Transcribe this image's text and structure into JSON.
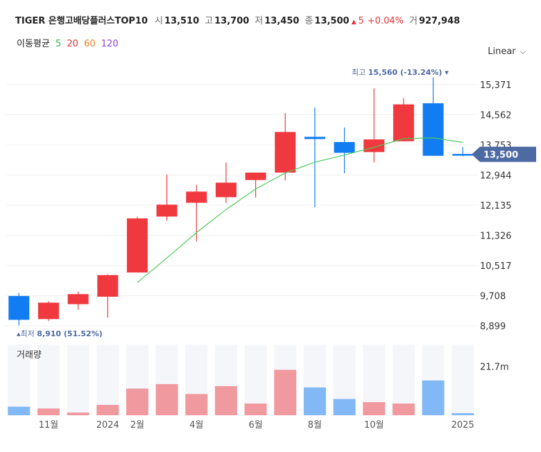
{
  "header": {
    "name": "TIGER 은행고배당플러스TOP10",
    "open_label": "시",
    "open": "13,510",
    "high_label": "고",
    "high": "13,700",
    "low_label": "저",
    "low": "13,450",
    "close_label": "종",
    "close": "13,500",
    "change": "5",
    "change_pct": "+0.04%",
    "volume_label": "거",
    "volume": "927,948"
  },
  "moving_average": {
    "label": "이동평균",
    "periods": [
      {
        "value": "5",
        "color": "#2db84d"
      },
      {
        "value": "20",
        "color": "#e5323a"
      },
      {
        "value": "60",
        "color": "#f07c22"
      },
      {
        "value": "120",
        "color": "#8a3ed6"
      }
    ]
  },
  "scale_selector": {
    "label": "Linear"
  },
  "colors": {
    "up": "#f0393f",
    "down": "#127df2",
    "up_volume": "#f09aa0",
    "down_volume": "#82b8f5",
    "ma": "#4cc95a",
    "badge": "#4e6aa3"
  },
  "chart_data": {
    "type": "candlestick",
    "y_ticks": [
      "15,371",
      "14,562",
      "13,753",
      "12,944",
      "12,135",
      "11,326",
      "10,517",
      "9,708",
      "8,899"
    ],
    "y_tick_values": [
      15371,
      14562,
      13753,
      12944,
      12135,
      11326,
      10517,
      9708,
      8899
    ],
    "ylim": [
      8660,
      15640
    ],
    "x_tick_labels": [
      {
        "label": "11월",
        "index": 1
      },
      {
        "label": "2024",
        "index": 3
      },
      {
        "label": "2월",
        "index": 4
      },
      {
        "label": "4월",
        "index": 6
      },
      {
        "label": "6월",
        "index": 8
      },
      {
        "label": "8월",
        "index": 10
      },
      {
        "label": "10월",
        "index": 12
      },
      {
        "label": "2025",
        "index": 15
      }
    ],
    "candles": [
      {
        "open": 9700,
        "high": 9780,
        "low": 8910,
        "close": 9060
      },
      {
        "open": 9080,
        "high": 9560,
        "low": 9030,
        "close": 9520
      },
      {
        "open": 9480,
        "high": 9820,
        "low": 9330,
        "close": 9750
      },
      {
        "open": 9680,
        "high": 10280,
        "low": 9120,
        "close": 10260
      },
      {
        "open": 10330,
        "high": 11830,
        "low": 10330,
        "close": 11780
      },
      {
        "open": 11830,
        "high": 12960,
        "low": 11720,
        "close": 12150
      },
      {
        "open": 12200,
        "high": 12680,
        "low": 11160,
        "close": 12500
      },
      {
        "open": 12350,
        "high": 13280,
        "low": 12200,
        "close": 12740
      },
      {
        "open": 12810,
        "high": 13010,
        "low": 12340,
        "close": 13010
      },
      {
        "open": 13010,
        "high": 14610,
        "low": 12800,
        "close": 14100
      },
      {
        "open": 13970,
        "high": 14750,
        "low": 12080,
        "close": 13910
      },
      {
        "open": 13830,
        "high": 14220,
        "low": 12990,
        "close": 13540
      },
      {
        "open": 13560,
        "high": 15270,
        "low": 13280,
        "close": 13900
      },
      {
        "open": 13850,
        "high": 15010,
        "low": 13850,
        "close": 14840
      },
      {
        "open": 14870,
        "high": 15560,
        "low": 13460,
        "close": 13460
      },
      {
        "open": 13510,
        "high": 13700,
        "low": 13450,
        "close": 13500
      }
    ],
    "moving_average_points": [
      {
        "index": 4,
        "value": 10060
      },
      {
        "index": 5,
        "value": 10720
      },
      {
        "index": 6,
        "value": 11400
      },
      {
        "index": 7,
        "value": 12020
      },
      {
        "index": 8,
        "value": 12570
      },
      {
        "index": 9,
        "value": 13000
      },
      {
        "index": 10,
        "value": 13290
      },
      {
        "index": 11,
        "value": 13480
      },
      {
        "index": 12,
        "value": 13690
      },
      {
        "index": 13,
        "value": 13920
      },
      {
        "index": 14,
        "value": 13940
      },
      {
        "index": 15,
        "value": 13820
      }
    ],
    "volume_tick": "21.7m",
    "volume_tick_value": 21.7,
    "volume_max": 30.0,
    "volumes": [
      3.8,
      3.0,
      1.2,
      4.6,
      11.8,
      13.8,
      9.4,
      12.9,
      5.2,
      20.1,
      12.3,
      7.2,
      5.8,
      5.2,
      15.4,
      0.93
    ],
    "annotations": {
      "high": {
        "label": "최고",
        "value": "15,560 (-13.24%)",
        "candle": 14
      },
      "low": {
        "label": "최저",
        "value": "8,910 (51.52%)",
        "candle": 0
      },
      "current": {
        "value": "13,500"
      }
    }
  }
}
